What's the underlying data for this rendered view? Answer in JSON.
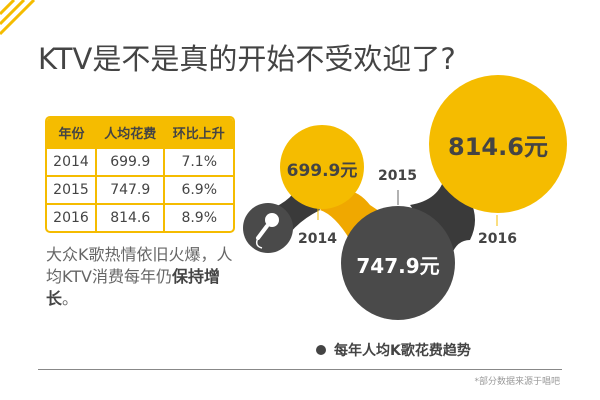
{
  "title": "KTV是不是真的开始不受欢迎了?",
  "table": {
    "headers": [
      "年份",
      "人均花费",
      "环比上升"
    ],
    "rows": [
      [
        "2014",
        "699.9",
        "7.1%"
      ],
      [
        "2015",
        "747.9",
        "6.9%"
      ],
      [
        "2016",
        "814.6",
        "8.9%"
      ]
    ]
  },
  "paragraph": {
    "normal": "大众K歌热情依旧火爆，人均KTV消费每年仍",
    "bold": "保持增长",
    "end": "。"
  },
  "bubbles": [
    {
      "year": "2014",
      "value": "699.9元"
    },
    {
      "year": "2015",
      "value": "747.9元"
    },
    {
      "year": "2016",
      "value": "814.6元"
    }
  ],
  "legend": "每年人均K歌花费趋势",
  "footnote": "*部分数据来源于唱吧",
  "colors": {
    "yellow": "#f5bc00",
    "dark": "#4a4a4a"
  }
}
